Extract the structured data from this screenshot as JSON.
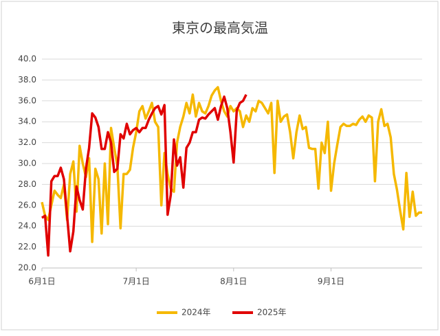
{
  "chart_data": {
    "type": "line",
    "title": "東京の最高気温",
    "categories": [
      "6月1日",
      null,
      null,
      null,
      null,
      null,
      null,
      null,
      null,
      null,
      null,
      null,
      null,
      null,
      null,
      null,
      null,
      null,
      null,
      null,
      null,
      null,
      null,
      null,
      null,
      null,
      null,
      null,
      null,
      null,
      "7月1日",
      null,
      null,
      null,
      null,
      null,
      null,
      null,
      null,
      null,
      null,
      null,
      null,
      null,
      null,
      null,
      null,
      null,
      null,
      null,
      null,
      null,
      null,
      null,
      null,
      null,
      null,
      null,
      null,
      null,
      null,
      "8月1日",
      null,
      null,
      null,
      null,
      null,
      null,
      null,
      null,
      null,
      null,
      null,
      null,
      null,
      null,
      null,
      null,
      null,
      null,
      null,
      null,
      null,
      null,
      null,
      null,
      null,
      null,
      null,
      null,
      null,
      null,
      "9月1日",
      null,
      null,
      null,
      null,
      null,
      null,
      null,
      null,
      null,
      null,
      null,
      null,
      null,
      null,
      null,
      null,
      null,
      null,
      null,
      null,
      null,
      null,
      null,
      null,
      null,
      null,
      null,
      null,
      null
    ],
    "series": [
      {
        "name": "2024年",
        "color": "#f5b800",
        "values": [
          26.3,
          25.0,
          24.6,
          26.0,
          27.4,
          27.0,
          26.7,
          28.0,
          24.6,
          29.0,
          30.2,
          25.4,
          31.7,
          30.0,
          28.7,
          30.5,
          22.5,
          29.5,
          28.5,
          23.3,
          30.0,
          24.2,
          33.4,
          31.5,
          29.8,
          23.8,
          29.0,
          29.0,
          29.4,
          31.5,
          33.0,
          35.0,
          35.5,
          34.3,
          35.0,
          35.8,
          34.0,
          33.5,
          26.0,
          31.0,
          29.0,
          27.6,
          27.3,
          32.0,
          33.5,
          34.5,
          35.8,
          34.8,
          36.6,
          34.5,
          35.8,
          35.0,
          34.8,
          35.5,
          36.5,
          37.0,
          37.3,
          36.0,
          35.0,
          34.5,
          35.5,
          35.0,
          35.3,
          35.0,
          33.5,
          34.6,
          34.0,
          35.3,
          35.0,
          36.0,
          35.8,
          35.3,
          34.8,
          35.8,
          29.1,
          36.0,
          34.0,
          34.5,
          34.7,
          33.0,
          30.5,
          33.0,
          34.6,
          33.3,
          33.5,
          31.5,
          31.4,
          31.4,
          27.6,
          32.0,
          31.0,
          34.0,
          27.4,
          30.0,
          31.8,
          33.5,
          33.8,
          33.6,
          33.6,
          33.8,
          33.7,
          34.2,
          34.5,
          34.0,
          34.6,
          34.4,
          28.3,
          34.0,
          35.2,
          33.6,
          33.8,
          32.5,
          29.0,
          27.5,
          25.5,
          23.7,
          29.1,
          24.9,
          27.3,
          25.0,
          25.3,
          25.3
        ]
      },
      {
        "name": "2025年",
        "color": "#e00000",
        "values": [
          24.8,
          25.0,
          21.2,
          28.3,
          28.8,
          28.8,
          29.6,
          28.5,
          25.0,
          21.6,
          23.5,
          27.8,
          26.5,
          25.6,
          29.5,
          31.5,
          34.8,
          34.4,
          33.5,
          31.4,
          31.4,
          33.0,
          32.0,
          29.2,
          29.5,
          32.8,
          32.4,
          33.8,
          32.8,
          33.2,
          33.4,
          33.0,
          33.4,
          33.4,
          34.2,
          34.8,
          35.3,
          35.5,
          34.7,
          35.6,
          25.1,
          27.0,
          32.3,
          29.8,
          30.6,
          27.7,
          31.5,
          32.0,
          33.0,
          33.0,
          34.2,
          34.4,
          34.3,
          34.7,
          35.0,
          35.3,
          34.2,
          35.5,
          36.4,
          35.3,
          33.0,
          30.1,
          35.1,
          35.8,
          36.0,
          36.6,
          null,
          null,
          null,
          null,
          null,
          null,
          null,
          null,
          null,
          null,
          null,
          null,
          null,
          null,
          null,
          null,
          null,
          null,
          null,
          null,
          null,
          null,
          null,
          null,
          null,
          null,
          null,
          null,
          null,
          null,
          null,
          null,
          null,
          null,
          null,
          null,
          null,
          null,
          null,
          null,
          null,
          null,
          null,
          null,
          null,
          null,
          null,
          null,
          null,
          null,
          null,
          null,
          null,
          null,
          null,
          null
        ]
      }
    ],
    "ylim": [
      20,
      40
    ],
    "yticks": [
      {
        "value": 20,
        "label": "20.0"
      },
      {
        "value": 22,
        "label": "22.0"
      },
      {
        "value": 24,
        "label": "24.0"
      },
      {
        "value": 26,
        "label": "26.0"
      },
      {
        "value": 28,
        "label": "28.0"
      },
      {
        "value": 30,
        "label": "30.0"
      },
      {
        "value": 32,
        "label": "32.0"
      },
      {
        "value": 34,
        "label": "34.0"
      },
      {
        "value": 36,
        "label": "36.0"
      },
      {
        "value": 38,
        "label": "38.0"
      },
      {
        "value": 40,
        "label": "40.0"
      }
    ],
    "grid": true,
    "legend": "bottom"
  }
}
